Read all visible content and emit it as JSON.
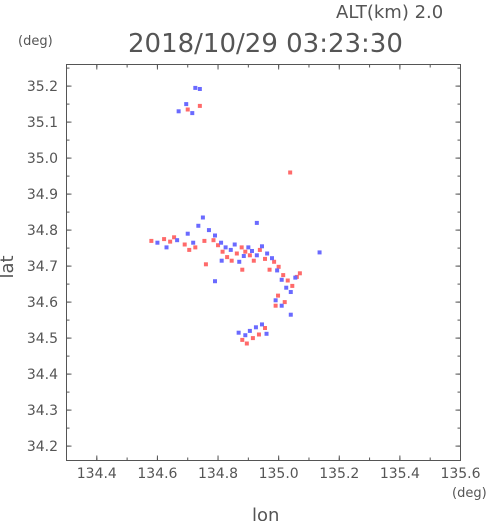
{
  "header": {
    "altitude_label": "ALT(km) 2.0",
    "timestamp": "2018/10/29 03:23:30"
  },
  "colors": {
    "axis": "#555555",
    "positive": "#ff6a6a",
    "negative": "#6a6aff",
    "background": "#ffffff"
  },
  "chart_data": {
    "type": "scatter",
    "xlabel": "lon",
    "ylabel": "lat",
    "x_unit": "(deg)",
    "y_unit": "(deg)",
    "xlim": [
      134.3,
      135.6
    ],
    "ylim": [
      34.16,
      35.26
    ],
    "x_ticks": [
      134.4,
      134.6,
      134.8,
      135.0,
      135.2,
      135.4,
      135.6
    ],
    "x_tick_labels": [
      "134.4",
      "134.6",
      "134.8",
      "135.0",
      "135.2",
      "135.4",
      "135.6"
    ],
    "y_ticks": [
      34.2,
      34.3,
      34.4,
      34.5,
      34.6,
      34.7,
      34.8,
      34.9,
      35.0,
      35.1,
      35.2
    ],
    "y_tick_labels": [
      "34.2",
      "34.3",
      "34.4",
      "34.5",
      "34.6",
      "34.7",
      "34.8",
      "34.9",
      "35.0",
      "35.1",
      "35.2"
    ],
    "grid": false,
    "series": [
      {
        "color": "#ff6a6a",
        "points": [
          [
            134.58,
            34.77
          ],
          [
            134.622,
            34.775
          ],
          [
            134.642,
            34.768
          ],
          [
            134.655,
            34.78
          ],
          [
            134.69,
            34.76
          ],
          [
            134.705,
            34.745
          ],
          [
            134.725,
            34.752
          ],
          [
            134.755,
            34.77
          ],
          [
            134.785,
            34.772
          ],
          [
            134.8,
            34.758
          ],
          [
            134.815,
            34.74
          ],
          [
            134.83,
            34.725
          ],
          [
            134.845,
            34.715
          ],
          [
            134.862,
            34.735
          ],
          [
            134.878,
            34.752
          ],
          [
            134.89,
            34.74
          ],
          [
            134.905,
            34.73
          ],
          [
            134.918,
            34.715
          ],
          [
            134.938,
            34.745
          ],
          [
            134.955,
            34.72
          ],
          [
            134.97,
            34.69
          ],
          [
            134.985,
            34.712
          ],
          [
            135.0,
            34.698
          ],
          [
            135.015,
            34.675
          ],
          [
            135.03,
            34.66
          ],
          [
            135.045,
            34.645
          ],
          [
            135.06,
            34.67
          ],
          [
            135.07,
            34.68
          ],
          [
            134.998,
            34.618
          ],
          [
            135.02,
            34.6
          ],
          [
            134.99,
            34.59
          ],
          [
            134.88,
            34.495
          ],
          [
            134.895,
            34.485
          ],
          [
            134.915,
            34.5
          ],
          [
            134.935,
            34.51
          ],
          [
            134.955,
            34.528
          ],
          [
            134.7,
            35.135
          ],
          [
            134.74,
            35.145
          ],
          [
            135.038,
            34.96
          ],
          [
            134.76,
            34.705
          ],
          [
            134.88,
            34.69
          ]
        ]
      },
      {
        "color": "#6a6aff",
        "points": [
          [
            134.6,
            34.765
          ],
          [
            134.63,
            34.752
          ],
          [
            134.665,
            34.772
          ],
          [
            134.7,
            34.79
          ],
          [
            134.718,
            34.765
          ],
          [
            134.735,
            34.812
          ],
          [
            134.75,
            34.835
          ],
          [
            134.77,
            34.8
          ],
          [
            134.79,
            34.785
          ],
          [
            134.81,
            34.765
          ],
          [
            134.825,
            34.752
          ],
          [
            134.842,
            34.745
          ],
          [
            134.855,
            34.76
          ],
          [
            134.87,
            34.712
          ],
          [
            134.885,
            34.728
          ],
          [
            134.9,
            34.752
          ],
          [
            134.912,
            34.742
          ],
          [
            134.928,
            34.73
          ],
          [
            134.945,
            34.755
          ],
          [
            134.962,
            34.735
          ],
          [
            134.978,
            34.722
          ],
          [
            134.995,
            34.688
          ],
          [
            135.01,
            34.662
          ],
          [
            135.025,
            34.64
          ],
          [
            135.04,
            34.628
          ],
          [
            135.055,
            34.668
          ],
          [
            134.99,
            34.605
          ],
          [
            135.01,
            34.59
          ],
          [
            134.868,
            34.515
          ],
          [
            134.89,
            34.508
          ],
          [
            134.905,
            34.52
          ],
          [
            134.925,
            34.53
          ],
          [
            134.945,
            34.538
          ],
          [
            134.96,
            34.512
          ],
          [
            134.67,
            35.13
          ],
          [
            134.695,
            35.15
          ],
          [
            134.715,
            35.125
          ],
          [
            134.725,
            35.195
          ],
          [
            134.74,
            35.192
          ],
          [
            134.928,
            34.82
          ],
          [
            134.79,
            34.658
          ],
          [
            135.04,
            34.565
          ],
          [
            135.135,
            34.738
          ],
          [
            134.812,
            34.715
          ]
        ]
      }
    ]
  }
}
